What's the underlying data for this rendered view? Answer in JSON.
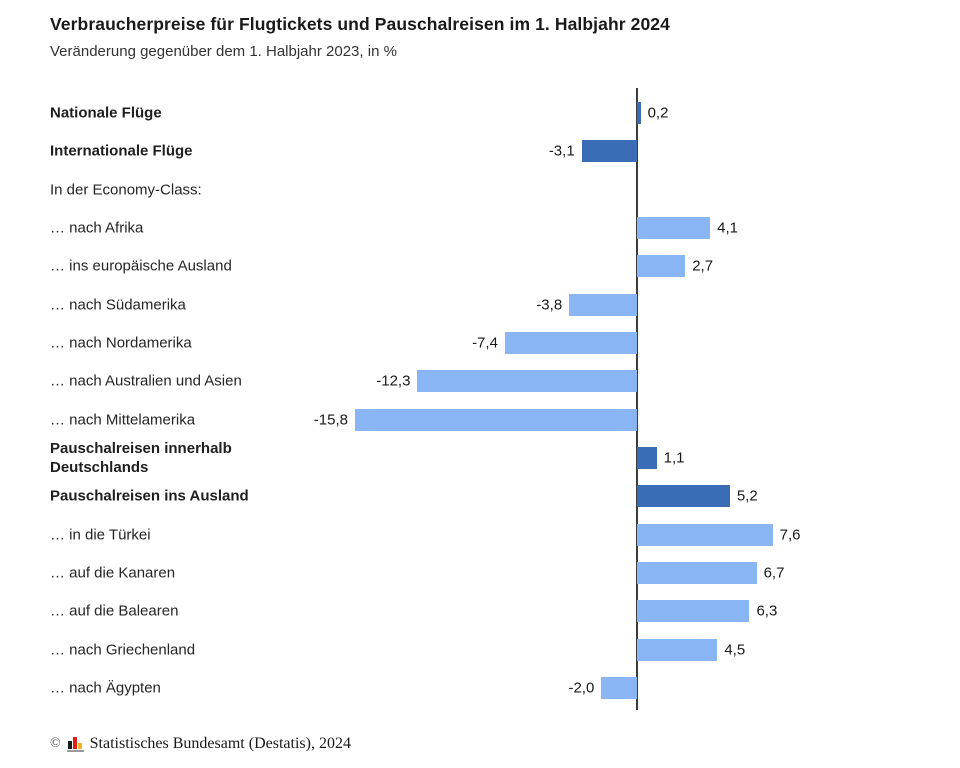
{
  "header": {
    "title": "Verbraucherpreise für Flugtickets und Pauschalreisen im 1. Halbjahr 2024",
    "subtitle": "Veränderung gegenüber dem 1. Halbjahr 2023, in %"
  },
  "colors": {
    "dark_blue": "#3a6db5",
    "light_blue": "#89b5f4",
    "axis": "#3c3c3c"
  },
  "chart_data": {
    "type": "bar",
    "orientation": "horizontal",
    "title": "Verbraucherpreise für Flugtickets und Pauschalreisen im 1. Halbjahr 2024",
    "subtitle": "Veränderung gegenüber dem 1. Halbjahr 2023, in %",
    "unit": "%",
    "xlim": [
      -15.8,
      7.6
    ],
    "zero_axis_line": true,
    "grid": false,
    "legend": false,
    "rows": [
      {
        "label": "Nationale Flüge",
        "value": 0.2,
        "display": "0,2",
        "style": "dark",
        "bold": true
      },
      {
        "label": "Internationale Flüge",
        "value": -3.1,
        "display": "-3,1",
        "style": "dark",
        "bold": true
      },
      {
        "label": "In der Economy-Class:",
        "value": null,
        "display": "",
        "style": null,
        "bold": false
      },
      {
        "label": "… nach Afrika",
        "value": 4.1,
        "display": "4,1",
        "style": "light",
        "bold": false
      },
      {
        "label": "… ins europäische Ausland",
        "value": 2.7,
        "display": "2,7",
        "style": "light",
        "bold": false
      },
      {
        "label": "… nach Südamerika",
        "value": -3.8,
        "display": "-3,8",
        "style": "light",
        "bold": false
      },
      {
        "label": "… nach Nordamerika",
        "value": -7.4,
        "display": "-7,4",
        "style": "light",
        "bold": false
      },
      {
        "label": "… nach Australien und Asien",
        "value": -12.3,
        "display": "-12,3",
        "style": "light",
        "bold": false
      },
      {
        "label": "… nach Mittelamerika",
        "value": -15.8,
        "display": "-15,8",
        "style": "light",
        "bold": false
      },
      {
        "label": "Pauschalreisen innerhalb Deutschlands",
        "value": 1.1,
        "display": "1,1",
        "style": "dark",
        "bold": true
      },
      {
        "label": "Pauschalreisen ins Ausland",
        "value": 5.2,
        "display": "5,2",
        "style": "dark",
        "bold": true
      },
      {
        "label": "… in die Türkei",
        "value": 7.6,
        "display": "7,6",
        "style": "light",
        "bold": false
      },
      {
        "label": "… auf die Kanaren",
        "value": 6.7,
        "display": "6,7",
        "style": "light",
        "bold": false
      },
      {
        "label": "… auf die Balearen",
        "value": 6.3,
        "display": "6,3",
        "style": "light",
        "bold": false
      },
      {
        "label": "… nach Griechenland",
        "value": 4.5,
        "display": "4,5",
        "style": "light",
        "bold": false
      },
      {
        "label": "… nach Ägypten",
        "value": -2.0,
        "display": "-2,0",
        "style": "light",
        "bold": false
      }
    ]
  },
  "footer": {
    "copyright_symbol": "©",
    "logo": "destatis-bar-chart-logo",
    "text": "Statistisches Bundesamt (Destatis), 2024"
  }
}
